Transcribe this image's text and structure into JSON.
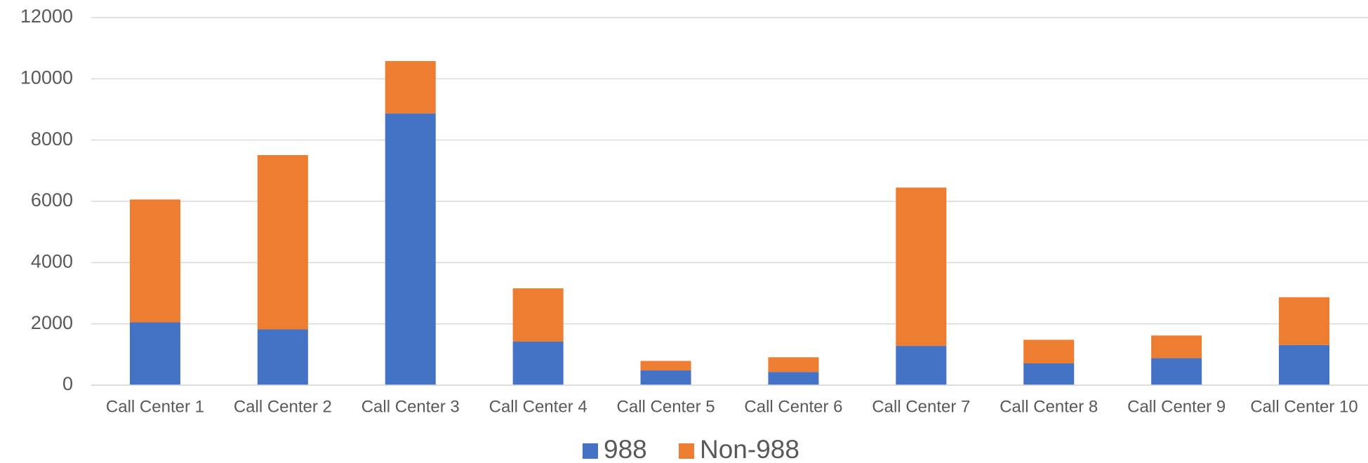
{
  "chart_data": {
    "type": "stacked_bar",
    "categories": [
      "Call Center 1",
      "Call Center 2",
      "Call Center 3",
      "Call Center 4",
      "Call Center 5",
      "Call Center 6",
      "Call Center 7",
      "Call Center 8",
      "Call Center 9",
      "Call Center 10"
    ],
    "series": [
      {
        "name": "988",
        "color": "#4472c4",
        "values": [
          2050,
          1820,
          8870,
          1420,
          480,
          430,
          1280,
          710,
          880,
          1310
        ]
      },
      {
        "name": "Non-988",
        "color": "#ed7d31",
        "values": [
          4010,
          5690,
          1710,
          1740,
          310,
          480,
          5170,
          770,
          740,
          1560
        ]
      }
    ],
    "ylim": [
      0,
      12000
    ],
    "yticks": [
      0,
      2000,
      4000,
      6000,
      8000,
      10000,
      12000
    ],
    "grid": true,
    "legend": "bottom"
  }
}
